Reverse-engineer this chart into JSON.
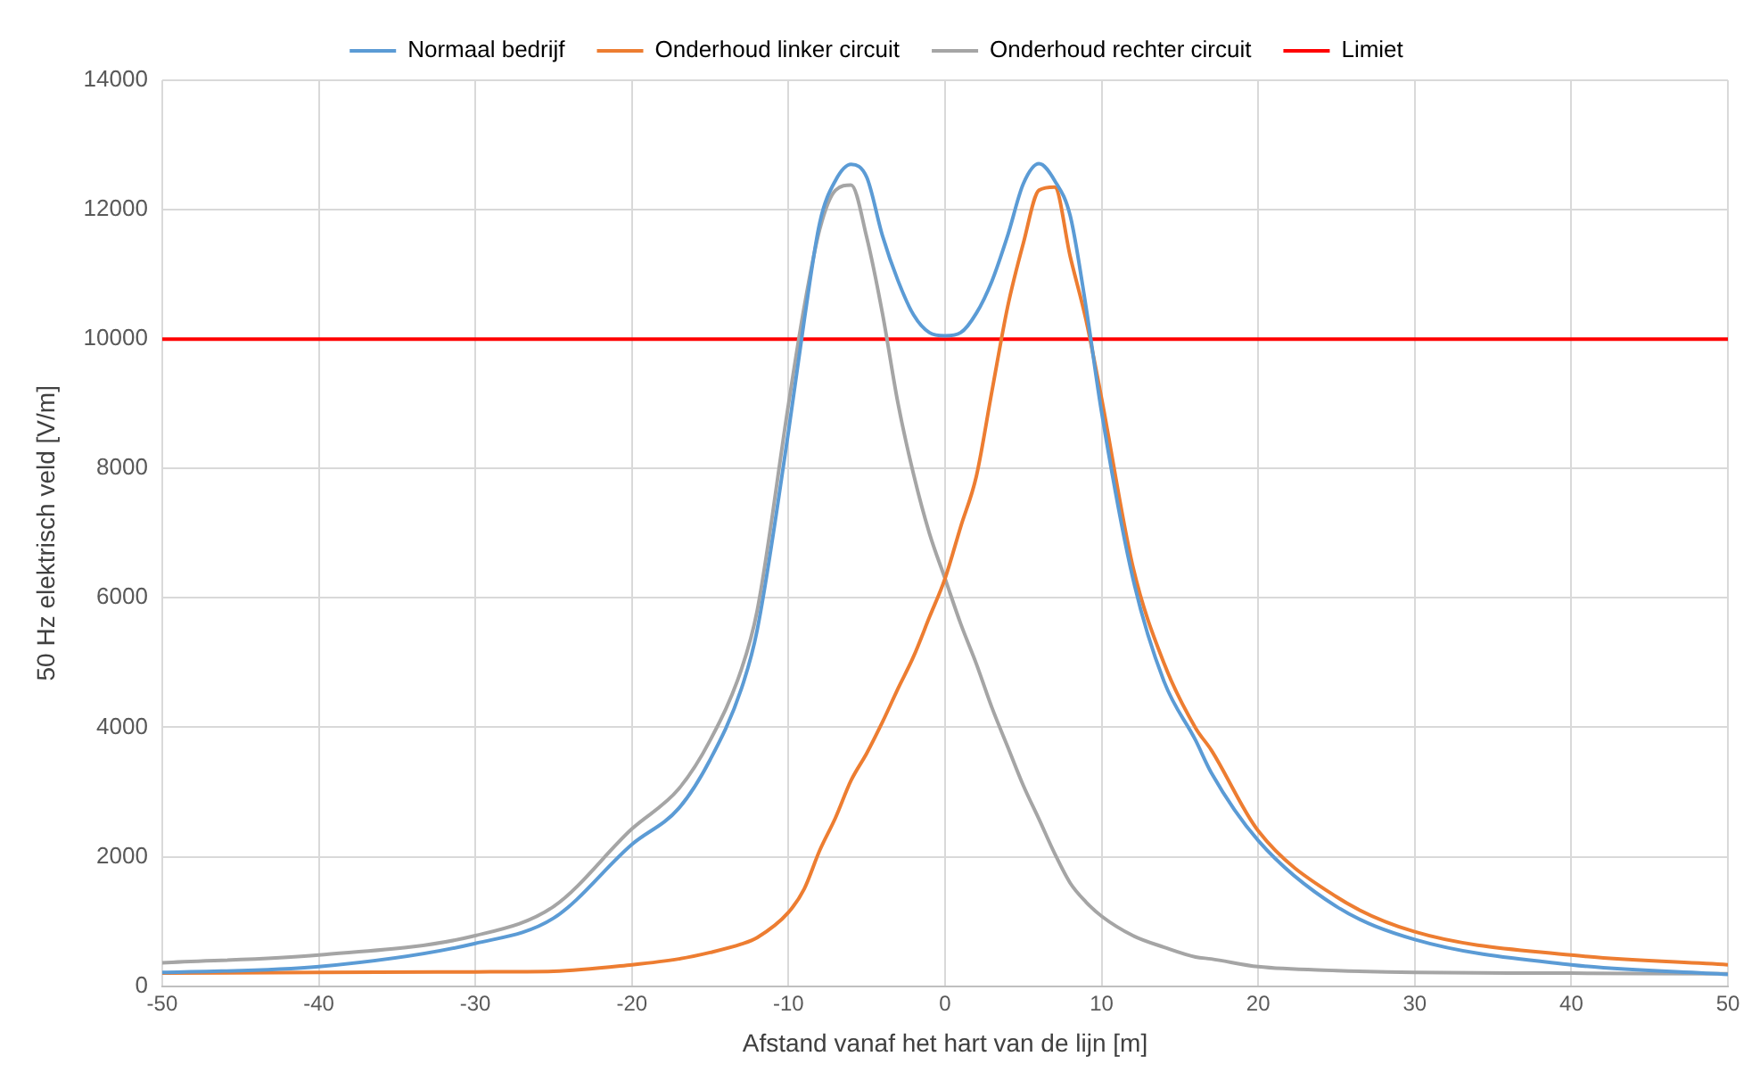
{
  "chart_data": {
    "type": "line",
    "xlabel": "Afstand vanaf het hart van de lijn [m]",
    "ylabel": "50 Hz elektrisch veld [V/m]",
    "x": [
      -50,
      -40,
      -30,
      -25,
      -20,
      -17,
      -15,
      -13,
      -12,
      -10,
      -9,
      -8,
      -7,
      -6,
      -5,
      -4,
      -3,
      -2,
      -1,
      0,
      1,
      2,
      3,
      4,
      5,
      6,
      7,
      8,
      9,
      10,
      12,
      14,
      16,
      17,
      20,
      25,
      30,
      40,
      50
    ],
    "series": [
      {
        "name": "Normaal bedrijf",
        "color": "#5b9bd5",
        "values": [
          210,
          300,
          660,
          1050,
          2190,
          2750,
          3500,
          4600,
          5500,
          8570,
          10280,
          11800,
          12450,
          12700,
          12500,
          11600,
          10900,
          10370,
          10100,
          10050,
          10100,
          10400,
          10900,
          11600,
          12400,
          12710,
          12450,
          11900,
          10500,
          8870,
          6300,
          4700,
          3800,
          3300,
          2250,
          1230,
          720,
          330,
          180
        ]
      },
      {
        "name": "Onderhoud linker circuit",
        "color": "#ed7d31",
        "values": [
          200,
          210,
          220,
          230,
          330,
          420,
          520,
          650,
          750,
          1140,
          1500,
          2100,
          2600,
          3180,
          3600,
          4080,
          4600,
          5100,
          5700,
          6300,
          7100,
          7880,
          9200,
          10500,
          11480,
          12300,
          12350,
          11270,
          10300,
          9080,
          6480,
          4980,
          3990,
          3650,
          2400,
          1380,
          840,
          480,
          330
        ]
      },
      {
        "name": "Onderhoud rechter circuit",
        "color": "#a5a5a5",
        "values": [
          360,
          480,
          780,
          1230,
          2430,
          3050,
          3800,
          4900,
          5800,
          8990,
          10490,
          11700,
          12300,
          12380,
          11570,
          10400,
          9000,
          7900,
          7000,
          6300,
          5600,
          4980,
          4300,
          3700,
          3100,
          2580,
          2050,
          1590,
          1300,
          1080,
          780,
          600,
          450,
          420,
          300,
          240,
          210,
          200,
          190
        ]
      }
    ],
    "ref_lines": [
      {
        "axis": "y",
        "value": 10000,
        "label": "Limiet",
        "color": "#ff0000"
      }
    ],
    "xlim": [
      -50,
      50
    ],
    "xticks": [
      -50,
      -40,
      -30,
      -20,
      -10,
      0,
      10,
      20,
      30,
      40,
      50
    ],
    "ylim": [
      0,
      14000
    ],
    "yticks": [
      0,
      2000,
      4000,
      6000,
      8000,
      10000,
      12000,
      14000
    ],
    "grid": true,
    "legend": "top",
    "marker": "none",
    "line_style": "solid"
  }
}
